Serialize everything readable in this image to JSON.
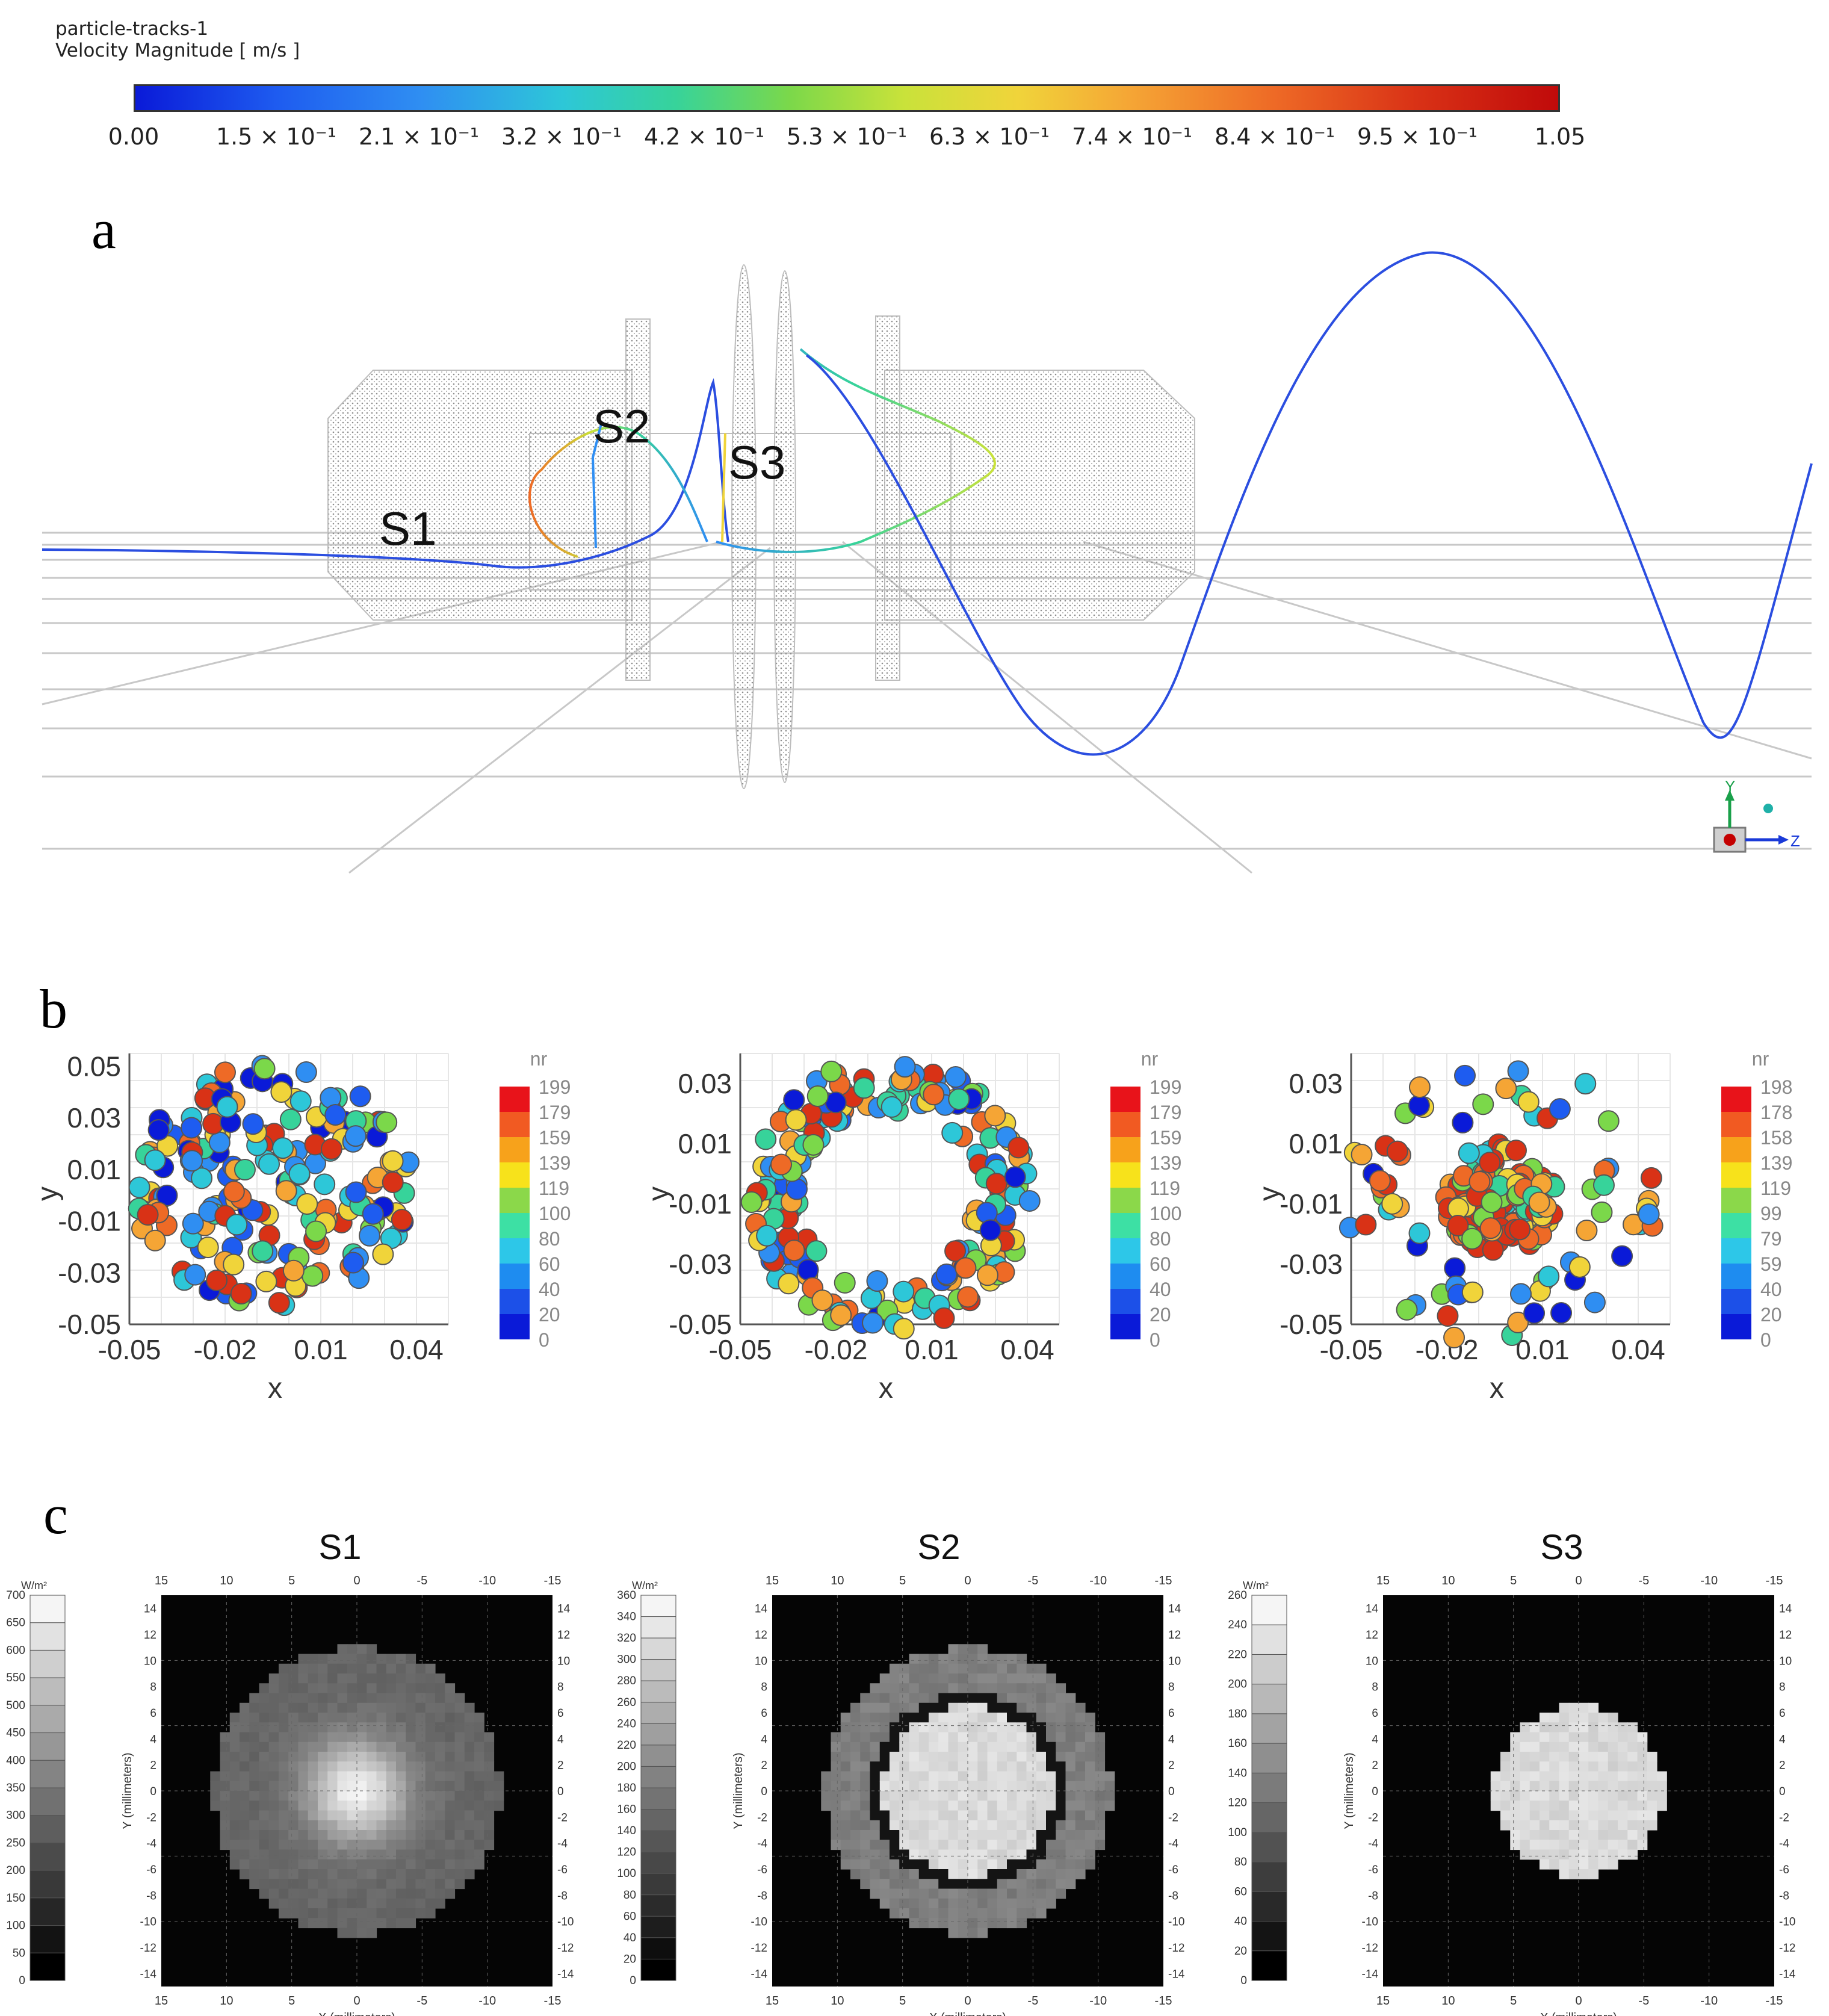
{
  "colorbar": {
    "title_line1": "particle-tracks-1",
    "title_line2": "Velocity Magnitude [ m/s ]",
    "ticks": [
      "0.00",
      "1.5 × 10⁻¹",
      "2.1 × 10⁻¹",
      "3.2 × 10⁻¹",
      "4.2 × 10⁻¹",
      "5.3 × 10⁻¹",
      "6.3 × 10⁻¹",
      "7.4 × 10⁻¹",
      "8.4 × 10⁻¹",
      "9.5 × 10⁻¹",
      "1.05"
    ]
  },
  "panel_a": {
    "letter": "a",
    "labels": [
      "S1",
      "S2",
      "S3"
    ],
    "axis_labels": {
      "y": "Y",
      "z": "Z"
    }
  },
  "panel_b": {
    "letter": "b",
    "legend_title": "nr",
    "charts": [
      {
        "xlabel": "x",
        "ylabel": "y",
        "yticks": [
          "0.05",
          "0.03",
          "0.01",
          "-0.01",
          "-0.03",
          "-0.05"
        ],
        "xticks": [
          "-0.05",
          "-0.02",
          "0.01",
          "0.04"
        ],
        "legend": [
          "199",
          "179",
          "159",
          "139",
          "119",
          "100",
          "80",
          "60",
          "40",
          "20",
          "0"
        ]
      },
      {
        "xlabel": "x",
        "ylabel": "y",
        "yticks": [
          "0.03",
          "0.01",
          "-0.01",
          "-0.03",
          "-0.05"
        ],
        "xticks": [
          "-0.05",
          "-0.02",
          "0.01",
          "0.04"
        ],
        "legend": [
          "199",
          "179",
          "159",
          "139",
          "119",
          "100",
          "80",
          "60",
          "40",
          "20",
          "0"
        ]
      },
      {
        "xlabel": "x",
        "ylabel": "y",
        "yticks": [
          "0.03",
          "0.01",
          "-0.01",
          "-0.03",
          "-0.05"
        ],
        "xticks": [
          "-0.05",
          "-0.02",
          "0.01",
          "0.04"
        ],
        "legend": [
          "198",
          "178",
          "158",
          "139",
          "119",
          "99",
          "79",
          "59",
          "40",
          "20",
          "0"
        ]
      }
    ]
  },
  "panel_c": {
    "letter": "c",
    "unit": "W/m²",
    "xlabel": "X (millimeters)",
    "ylabel": "Y (millimeters)",
    "top_ticks": [
      "15",
      "10",
      "5",
      "0",
      "-5",
      "-10",
      "-15"
    ],
    "side_ticks": [
      "14",
      "12",
      "10",
      "8",
      "6",
      "4",
      "2",
      "0",
      "-2",
      "-4",
      "-6",
      "-8",
      "-10",
      "-12",
      "-14"
    ],
    "maps": [
      {
        "title": "S1",
        "scale": [
          "700",
          "650",
          "600",
          "550",
          "500",
          "450",
          "400",
          "350",
          "300",
          "250",
          "200",
          "150",
          "100",
          "50",
          "0"
        ]
      },
      {
        "title": "S2",
        "scale": [
          "360",
          "340",
          "320",
          "300",
          "280",
          "260",
          "240",
          "220",
          "200",
          "180",
          "160",
          "140",
          "120",
          "100",
          "80",
          "60",
          "40",
          "20",
          "0"
        ]
      },
      {
        "title": "S3",
        "scale": [
          "260",
          "240",
          "220",
          "200",
          "180",
          "160",
          "140",
          "120",
          "100",
          "80",
          "60",
          "40",
          "20",
          "0"
        ]
      }
    ]
  },
  "chart_data": [
    {
      "type": "line",
      "title": "particle-tracks-1 Velocity Magnitude [ m/s ]",
      "colorscale_range": [
        0.0,
        1.05
      ],
      "series": [
        {
          "name": "particle track",
          "note": "trajectory through S1, S2, S3"
        }
      ]
    },
    {
      "type": "scatter",
      "xlabel": "x",
      "ylabel": "y",
      "xlim": [
        -0.05,
        0.05
      ],
      "ylim": [
        -0.05,
        0.055
      ],
      "color_var": "nr",
      "color_range": [
        0,
        199
      ],
      "distribution": "uniform disk",
      "radius": 0.045,
      "n_points": 200
    },
    {
      "type": "scatter",
      "xlabel": "x",
      "ylabel": "y",
      "xlim": [
        -0.05,
        0.05
      ],
      "ylim": [
        -0.05,
        0.04
      ],
      "color_var": "nr",
      "color_range": [
        0,
        199
      ],
      "distribution": "ring",
      "inner_radius": 0.028,
      "outer_radius": 0.045,
      "n_points": 200
    },
    {
      "type": "scatter",
      "xlabel": "x",
      "ylabel": "y",
      "xlim": [
        -0.05,
        0.05
      ],
      "ylim": [
        -0.05,
        0.04
      ],
      "color_var": "nr",
      "color_range": [
        0,
        198
      ],
      "distribution": "core cluster with scattered outliers",
      "core_radius": 0.018,
      "n_points": 200
    },
    {
      "type": "heatmap",
      "title": "S1",
      "unit": "W/m²",
      "value_range": [
        0,
        700
      ],
      "xlim": [
        15,
        -15
      ],
      "ylim": [
        -15,
        15
      ],
      "shape": "disk",
      "radius_mm": 11,
      "peak": "center"
    },
    {
      "type": "heatmap",
      "title": "S2",
      "unit": "W/m²",
      "value_range": [
        0,
        360
      ],
      "xlim": [
        15,
        -15
      ],
      "ylim": [
        -15,
        15
      ],
      "shape": "disk with annular gap",
      "inner_radius_mm": 6.5,
      "gap_outer_mm": 7.5,
      "outer_radius_mm": 11
    },
    {
      "type": "heatmap",
      "title": "S3",
      "unit": "W/m²",
      "value_range": [
        0,
        260
      ],
      "xlim": [
        15,
        -15
      ],
      "ylim": [
        -15,
        15
      ],
      "shape": "disk",
      "radius_mm": 6.5
    }
  ]
}
